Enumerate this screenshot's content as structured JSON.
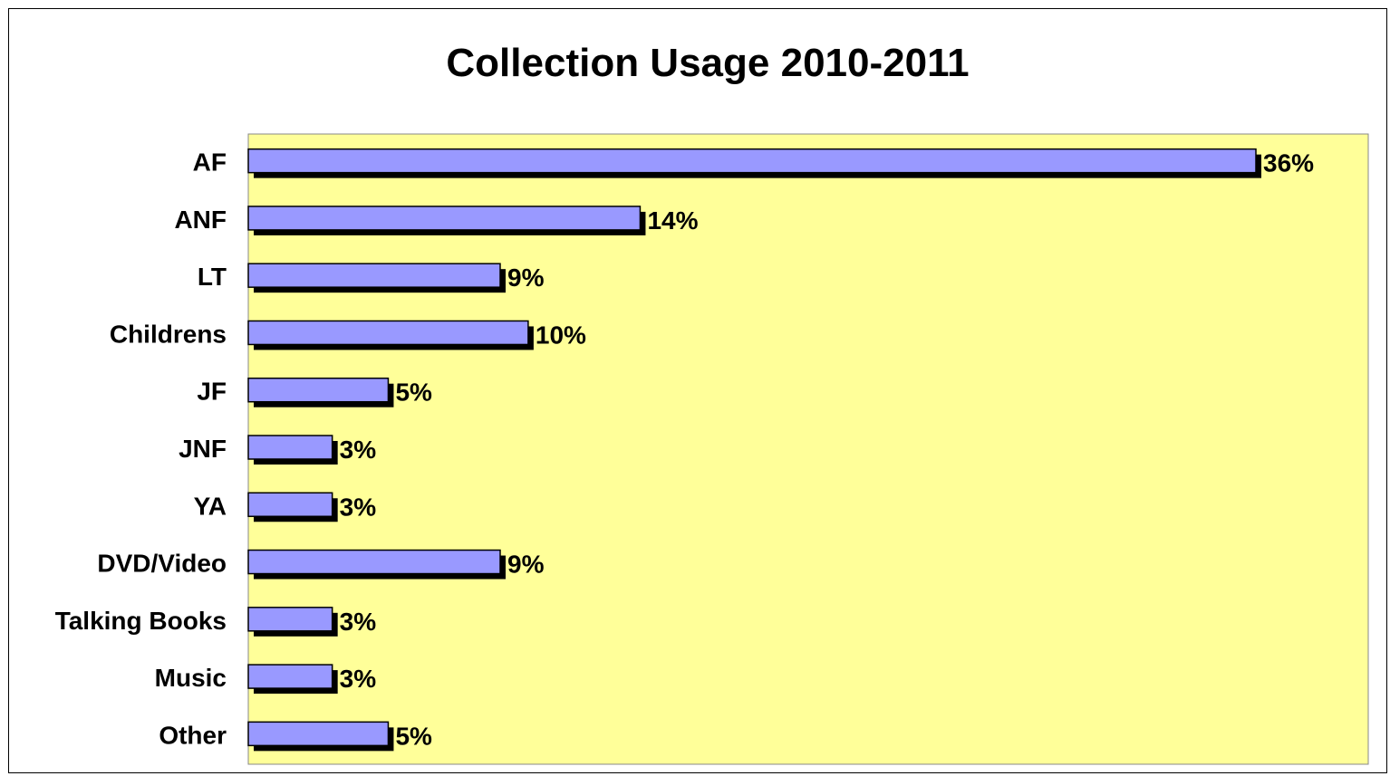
{
  "chart_data": {
    "type": "bar",
    "orientation": "horizontal",
    "title": "Collection Usage 2010-2011",
    "xlabel": "",
    "ylabel": "",
    "categories": [
      "AF",
      "ANF",
      "LT",
      "Childrens",
      "JF",
      "JNF",
      "YA",
      "DVD/Video",
      "Talking Books",
      "Music",
      "Other"
    ],
    "values": [
      36,
      14,
      9,
      10,
      5,
      3,
      3,
      9,
      3,
      3,
      5
    ],
    "value_labels": [
      "36%",
      "14%",
      "9%",
      "10%",
      "5%",
      "3%",
      "3%",
      "9%",
      "3%",
      "3%",
      "5%"
    ],
    "xlim": [
      0,
      40
    ],
    "grid": false,
    "legend": "none",
    "colors": {
      "plot_background": "#ffff99",
      "bar_fill": "#9999ff",
      "bar_shadow": "#000000"
    }
  }
}
